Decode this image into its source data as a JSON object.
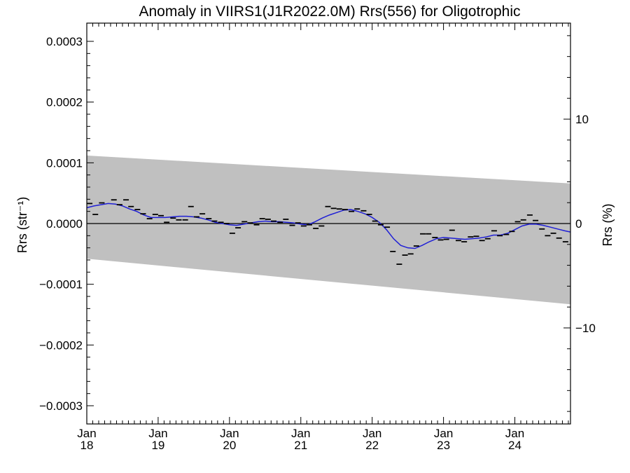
{
  "chart_data": {
    "type": "line",
    "title": "Anomaly in VIIRS1(J1R2022.0M) Rrs(556) for Oligotrophic",
    "ylabel_left": "Rrs (str⁻¹)",
    "ylabel_right": "Rrs (%)",
    "xlim": [
      2018.0,
      2024.78
    ],
    "ylim_left": [
      -0.00033,
      0.00033
    ],
    "ylim_right": [
      -19.2,
      19.2
    ],
    "yticks_left": [
      {
        "value": 0.0003,
        "label": "0.0003"
      },
      {
        "value": 0.0002,
        "label": "0.0002"
      },
      {
        "value": 0.0001,
        "label": "0.0001"
      },
      {
        "value": 0.0,
        "label": "0.0000"
      },
      {
        "value": -0.0001,
        "label": "−0.0001"
      },
      {
        "value": -0.0002,
        "label": "−0.0002"
      },
      {
        "value": -0.0003,
        "label": "−0.0003"
      }
    ],
    "yticks_right": [
      {
        "value": 10,
        "label": "10"
      },
      {
        "value": 0,
        "label": "0"
      },
      {
        "value": -10,
        "label": "−10"
      }
    ],
    "xticks": [
      {
        "value": 2018,
        "month": "Jan",
        "year": "18"
      },
      {
        "value": 2019,
        "month": "Jan",
        "year": "19"
      },
      {
        "value": 2020,
        "month": "Jan",
        "year": "20"
      },
      {
        "value": 2021,
        "month": "Jan",
        "year": "21"
      },
      {
        "value": 2022,
        "month": "Jan",
        "year": "22"
      },
      {
        "value": 2023,
        "month": "Jan",
        "year": "23"
      },
      {
        "value": 2024,
        "month": "Jan",
        "year": "24"
      }
    ],
    "uncertainty_band": {
      "upper": [
        [
          2018.0,
          0.000112
        ],
        [
          2024.78,
          6.6e-05
        ]
      ],
      "lower": [
        [
          2018.0,
          -5.8e-05
        ],
        [
          2024.78,
          -0.000133
        ]
      ]
    },
    "monthly_points": [
      [
        2018.04,
        3.3e-05
      ],
      [
        2018.12,
        1.5e-05
      ],
      [
        2018.21,
        3.4e-05
      ],
      [
        2018.38,
        3.9e-05
      ],
      [
        2018.46,
        3.1e-05
      ],
      [
        2018.55,
        3.9e-05
      ],
      [
        2018.62,
        2.8e-05
      ],
      [
        2018.71,
        2.3e-05
      ],
      [
        2018.79,
        1.6e-05
      ],
      [
        2018.88,
        8e-06
      ],
      [
        2018.96,
        1.5e-05
      ],
      [
        2019.04,
        1.3e-05
      ],
      [
        2019.12,
        2e-06
      ],
      [
        2019.21,
        9e-06
      ],
      [
        2019.29,
        6e-06
      ],
      [
        2019.38,
        6e-06
      ],
      [
        2019.46,
        2.8e-05
      ],
      [
        2019.54,
        1.1e-05
      ],
      [
        2019.62,
        1.6e-05
      ],
      [
        2019.71,
        8e-06
      ],
      [
        2019.79,
        4e-06
      ],
      [
        2019.88,
        2e-06
      ],
      [
        2019.96,
        0.0
      ],
      [
        2020.04,
        -1.6e-05
      ],
      [
        2020.12,
        -7e-06
      ],
      [
        2020.21,
        3e-06
      ],
      [
        2020.29,
        1e-06
      ],
      [
        2020.38,
        -2e-06
      ],
      [
        2020.46,
        8e-06
      ],
      [
        2020.54,
        7e-06
      ],
      [
        2020.62,
        4e-06
      ],
      [
        2020.71,
        2e-06
      ],
      [
        2020.79,
        7e-06
      ],
      [
        2020.88,
        -3e-06
      ],
      [
        2020.96,
        1e-06
      ],
      [
        2021.04,
        -4e-06
      ],
      [
        2021.12,
        -2e-06
      ],
      [
        2021.21,
        -8e-06
      ],
      [
        2021.29,
        -4e-06
      ],
      [
        2021.38,
        2.8e-05
      ],
      [
        2021.46,
        2.5e-05
      ],
      [
        2021.54,
        2.4e-05
      ],
      [
        2021.62,
        2.3e-05
      ],
      [
        2021.71,
        2e-05
      ],
      [
        2021.79,
        2.4e-05
      ],
      [
        2021.88,
        2.1e-05
      ],
      [
        2021.96,
        1.5e-05
      ],
      [
        2022.04,
        4e-06
      ],
      [
        2022.12,
        -2e-06
      ],
      [
        2022.21,
        -6e-06
      ],
      [
        2022.29,
        -4.6e-05
      ],
      [
        2022.38,
        -6.7e-05
      ],
      [
        2022.46,
        -5.2e-05
      ],
      [
        2022.54,
        -5e-05
      ],
      [
        2022.62,
        -3.7e-05
      ],
      [
        2022.71,
        -1.7e-05
      ],
      [
        2022.79,
        -1.7e-05
      ],
      [
        2022.88,
        -2.3e-05
      ],
      [
        2022.96,
        -2.7e-05
      ],
      [
        2023.04,
        -2.6e-05
      ],
      [
        2023.12,
        -1.1e-05
      ],
      [
        2023.21,
        -2.8e-05
      ],
      [
        2023.29,
        -3e-05
      ],
      [
        2023.38,
        -2.2e-05
      ],
      [
        2023.46,
        -2.1e-05
      ],
      [
        2023.54,
        -2.8e-05
      ],
      [
        2023.62,
        -2.5e-05
      ],
      [
        2023.71,
        -1.2e-05
      ],
      [
        2023.79,
        -2e-05
      ],
      [
        2023.88,
        -1.8e-05
      ],
      [
        2023.96,
        -1.3e-05
      ],
      [
        2024.04,
        3e-06
      ],
      [
        2024.12,
        6e-06
      ],
      [
        2024.21,
        1.4e-05
      ],
      [
        2024.29,
        5e-06
      ],
      [
        2024.38,
        -9e-06
      ],
      [
        2024.46,
        -2e-05
      ],
      [
        2024.54,
        -1.6e-05
      ],
      [
        2024.62,
        -2.4e-05
      ],
      [
        2024.71,
        -3e-05
      ]
    ],
    "smoothed_series": [
      [
        2018.0,
        2.6e-05
      ],
      [
        2018.1,
        2.9e-05
      ],
      [
        2018.2,
        3.1e-05
      ],
      [
        2018.3,
        3.3e-05
      ],
      [
        2018.4,
        3.2e-05
      ],
      [
        2018.5,
        2.9e-05
      ],
      [
        2018.6,
        2.4e-05
      ],
      [
        2018.7,
        2e-05
      ],
      [
        2018.8,
        1.4e-05
      ],
      [
        2018.9,
        1e-05
      ],
      [
        2019.0,
        1e-05
      ],
      [
        2019.1,
        1e-05
      ],
      [
        2019.2,
        1.1e-05
      ],
      [
        2019.3,
        1.2e-05
      ],
      [
        2019.4,
        1.2e-05
      ],
      [
        2019.5,
        1.1e-05
      ],
      [
        2019.6,
        9e-06
      ],
      [
        2019.7,
        6e-06
      ],
      [
        2019.8,
        2e-06
      ],
      [
        2019.9,
        0.0
      ],
      [
        2020.0,
        -2e-06
      ],
      [
        2020.1,
        -3e-06
      ],
      [
        2020.2,
        -1e-06
      ],
      [
        2020.3,
        1e-06
      ],
      [
        2020.4,
        3e-06
      ],
      [
        2020.5,
        4e-06
      ],
      [
        2020.6,
        3e-06
      ],
      [
        2020.7,
        3e-06
      ],
      [
        2020.8,
        2e-06
      ],
      [
        2020.9,
        1e-06
      ],
      [
        2021.0,
        -1e-06
      ],
      [
        2021.1,
        -2e-06
      ],
      [
        2021.2,
        3e-06
      ],
      [
        2021.3,
        9e-06
      ],
      [
        2021.4,
        1.4e-05
      ],
      [
        2021.5,
        1.8e-05
      ],
      [
        2021.6,
        2.2e-05
      ],
      [
        2021.7,
        2.3e-05
      ],
      [
        2021.8,
        2e-05
      ],
      [
        2021.9,
        1.6e-05
      ],
      [
        2022.0,
        1e-05
      ],
      [
        2022.1,
        2e-06
      ],
      [
        2022.2,
        -1e-05
      ],
      [
        2022.3,
        -2.5e-05
      ],
      [
        2022.4,
        -3.6e-05
      ],
      [
        2022.5,
        -4e-05
      ],
      [
        2022.6,
        -4.1e-05
      ],
      [
        2022.7,
        -3.6e-05
      ],
      [
        2022.8,
        -3e-05
      ],
      [
        2022.9,
        -2.5e-05
      ],
      [
        2023.0,
        -2.3e-05
      ],
      [
        2023.1,
        -2.4e-05
      ],
      [
        2023.2,
        -2.5e-05
      ],
      [
        2023.3,
        -2.6e-05
      ],
      [
        2023.4,
        -2.5e-05
      ],
      [
        2023.5,
        -2.4e-05
      ],
      [
        2023.6,
        -2.2e-05
      ],
      [
        2023.7,
        -1.9e-05
      ],
      [
        2023.8,
        -1.9e-05
      ],
      [
        2023.9,
        -1.6e-05
      ],
      [
        2024.0,
        -1e-05
      ],
      [
        2024.1,
        -4e-06
      ],
      [
        2024.2,
        -1e-06
      ],
      [
        2024.3,
        -1e-06
      ],
      [
        2024.4,
        -3e-06
      ],
      [
        2024.5,
        -6e-06
      ],
      [
        2024.6,
        -9e-06
      ],
      [
        2024.7,
        -1.2e-05
      ],
      [
        2024.78,
        -1.4e-05
      ]
    ],
    "zero_line": 0,
    "colors": {
      "band": "#c0c0c0",
      "smoothed": "#1f1fd6",
      "points": "#000000",
      "axes": "#000000"
    }
  }
}
